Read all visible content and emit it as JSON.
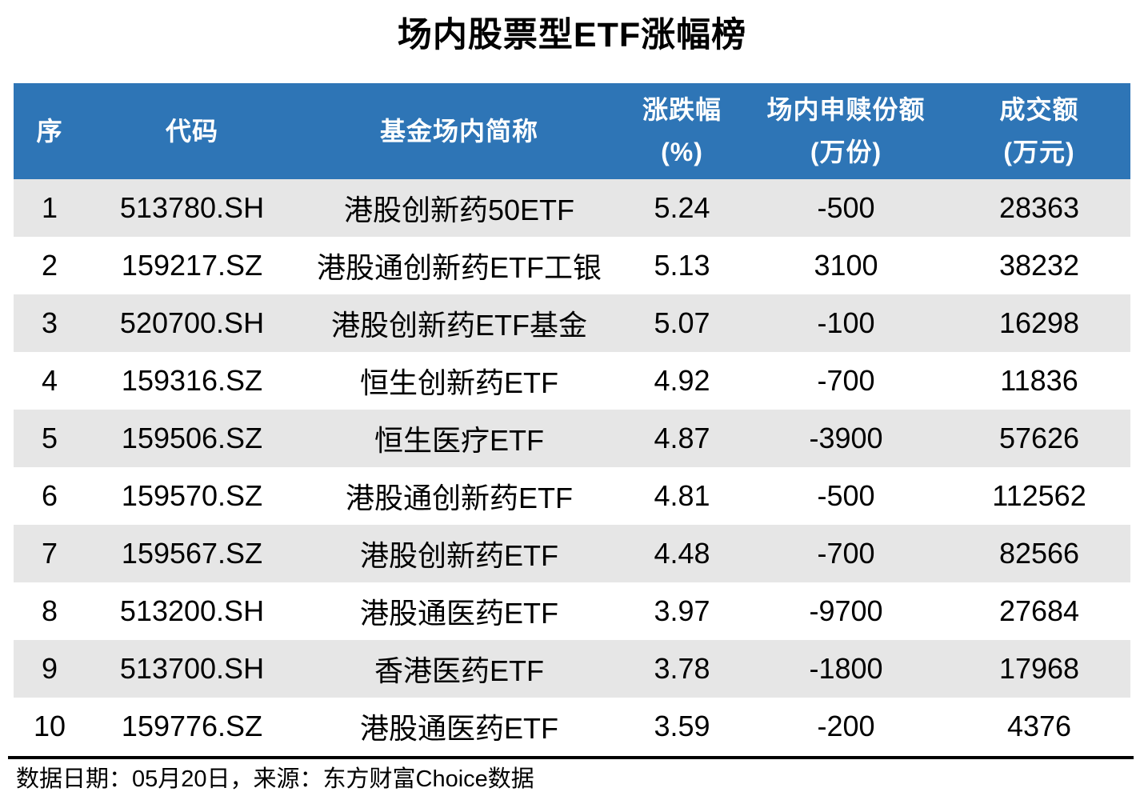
{
  "title": "场内股票型ETF涨幅榜",
  "colors": {
    "header_bg": "#2E75B6",
    "stripe_bg": "#E6E6E6",
    "header_text": "#FFFFFF",
    "body_text": "#000000"
  },
  "table": {
    "headers": [
      {
        "line1": "序",
        "line2": ""
      },
      {
        "line1": "代码",
        "line2": ""
      },
      {
        "line1": "基金场内简称",
        "line2": ""
      },
      {
        "line1": "涨跌幅",
        "line2": "(%)"
      },
      {
        "line1": "场内申赎份额",
        "line2": "(万份)"
      },
      {
        "line1": "成交额",
        "line2": "(万元)"
      }
    ],
    "rows": [
      {
        "rank": "1",
        "code": "513780.SH",
        "name": "港股创新药50ETF",
        "change_pct": "5.24",
        "shares": "-500",
        "turnover": "28363"
      },
      {
        "rank": "2",
        "code": "159217.SZ",
        "name": "港股通创新药ETF工银",
        "change_pct": "5.13",
        "shares": "3100",
        "turnover": "38232"
      },
      {
        "rank": "3",
        "code": "520700.SH",
        "name": "港股创新药ETF基金",
        "change_pct": "5.07",
        "shares": "-100",
        "turnover": "16298"
      },
      {
        "rank": "4",
        "code": "159316.SZ",
        "name": "恒生创新药ETF",
        "change_pct": "4.92",
        "shares": "-700",
        "turnover": "11836"
      },
      {
        "rank": "5",
        "code": "159506.SZ",
        "name": "恒生医疗ETF",
        "change_pct": "4.87",
        "shares": "-3900",
        "turnover": "57626"
      },
      {
        "rank": "6",
        "code": "159570.SZ",
        "name": "港股通创新药ETF",
        "change_pct": "4.81",
        "shares": "-500",
        "turnover": "112562"
      },
      {
        "rank": "7",
        "code": "159567.SZ",
        "name": "港股创新药ETF",
        "change_pct": "4.48",
        "shares": "-700",
        "turnover": "82566"
      },
      {
        "rank": "8",
        "code": "513200.SH",
        "name": "港股通医药ETF",
        "change_pct": "3.97",
        "shares": "-9700",
        "turnover": "27684"
      },
      {
        "rank": "9",
        "code": "513700.SH",
        "name": "香港医药ETF",
        "change_pct": "3.78",
        "shares": "-1800",
        "turnover": "17968"
      },
      {
        "rank": "10",
        "code": "159776.SZ",
        "name": "港股通医药ETF",
        "change_pct": "3.59",
        "shares": "-200",
        "turnover": "4376"
      }
    ]
  },
  "footer": {
    "note": "数据日期：05月20日，来源：东方财富Choice数据"
  },
  "chart_data": {
    "type": "table",
    "title": "场内股票型ETF涨幅榜",
    "columns": [
      "序",
      "代码",
      "基金场内简称",
      "涨跌幅(%)",
      "场内申赎份额(万份)",
      "成交额(万元)"
    ],
    "rows": [
      [
        1,
        "513780.SH",
        "港股创新药50ETF",
        5.24,
        -500,
        28363
      ],
      [
        2,
        "159217.SZ",
        "港股通创新药ETF工银",
        5.13,
        3100,
        38232
      ],
      [
        3,
        "520700.SH",
        "港股创新药ETF基金",
        5.07,
        -100,
        16298
      ],
      [
        4,
        "159316.SZ",
        "恒生创新药ETF",
        4.92,
        -700,
        11836
      ],
      [
        5,
        "159506.SZ",
        "恒生医疗ETF",
        4.87,
        -3900,
        57626
      ],
      [
        6,
        "159570.SZ",
        "港股通创新药ETF",
        4.81,
        -500,
        112562
      ],
      [
        7,
        "159567.SZ",
        "港股创新药ETF",
        4.48,
        -700,
        82566
      ],
      [
        8,
        "513200.SH",
        "港股通医药ETF",
        3.97,
        -9700,
        27684
      ],
      [
        9,
        "513700.SH",
        "香港医药ETF",
        3.78,
        -1800,
        17968
      ],
      [
        10,
        "159776.SZ",
        "港股通医药ETF",
        3.59,
        -200,
        4376
      ]
    ],
    "source_note": "数据日期：05月20日，来源：东方财富Choice数据"
  }
}
